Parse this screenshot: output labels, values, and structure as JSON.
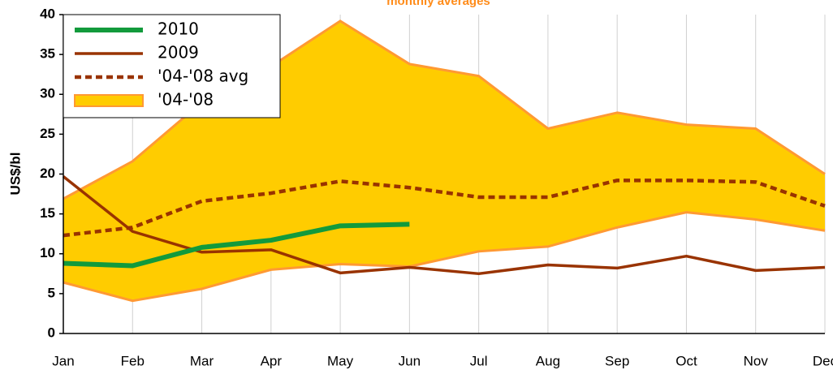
{
  "chart_data": {
    "type": "line",
    "title": "monthly averages",
    "y_label": "US$/bl",
    "categories": [
      "Jan",
      "Feb",
      "Mar",
      "Apr",
      "May",
      "Jun",
      "Jul",
      "Aug",
      "Sep",
      "Oct",
      "Nov",
      "Dec"
    ],
    "series": [
      {
        "name": "2010",
        "color": "#129a3c",
        "style": "solid",
        "values": [
          8.8,
          8.5,
          10.8,
          11.7,
          13.5,
          13.7,
          null,
          null,
          null,
          null,
          null,
          null
        ]
      },
      {
        "name": "2009",
        "color": "#993300",
        "style": "solid",
        "values": [
          19.7,
          12.8,
          10.2,
          10.5,
          7.6,
          8.3,
          7.5,
          8.6,
          8.2,
          9.7,
          7.9,
          8.3
        ]
      },
      {
        "name": "'04-'08 avg",
        "color": "#993300",
        "style": "dashed",
        "values": [
          12.3,
          13.3,
          16.6,
          17.6,
          19.1,
          18.3,
          17.1,
          17.1,
          19.2,
          19.2,
          19.0,
          16.0
        ]
      },
      {
        "name": "'04-'08",
        "type": "range",
        "color": "#ffcc00",
        "edge_color": "#ff9933",
        "low": [
          6.4,
          4.1,
          5.6,
          8.0,
          8.7,
          8.4,
          10.3,
          10.9,
          13.3,
          15.2,
          14.3,
          12.9
        ],
        "high": [
          16.9,
          21.6,
          29.0,
          33.5,
          39.2,
          33.8,
          32.3,
          25.7,
          27.7,
          26.2,
          25.7,
          20.0
        ]
      }
    ],
    "ylim": [
      0,
      40
    ],
    "yticks": [
      0,
      5,
      10,
      15,
      20,
      25,
      30,
      35,
      40
    ],
    "grid": "x",
    "legend": "top-left"
  }
}
